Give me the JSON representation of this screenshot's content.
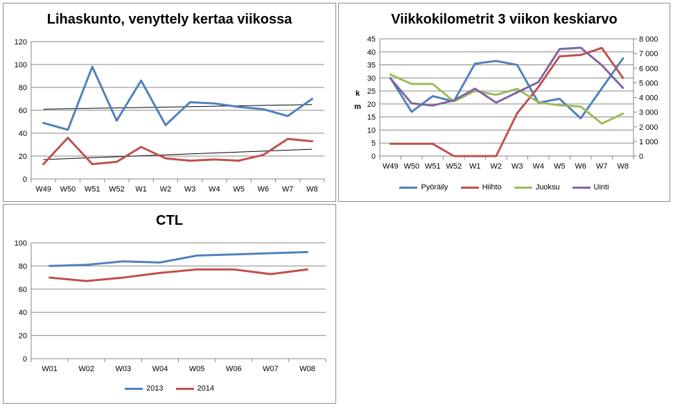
{
  "colors": {
    "blue": "#4f81bd",
    "red": "#c0504d",
    "green": "#9bbb59",
    "purple": "#8064a2",
    "trend": "#000000",
    "grid": "#868686"
  },
  "chart_data": [
    {
      "type": "line",
      "title": "Lihaskunto, venyttely kertaa viikossa",
      "categories": [
        "W49",
        "W50",
        "W51",
        "W52",
        "W1",
        "W2",
        "W3",
        "W4",
        "W5",
        "W6",
        "W7",
        "W8"
      ],
      "ylim": [
        0,
        120
      ],
      "yticks": [
        0,
        20,
        40,
        60,
        80,
        100,
        120
      ],
      "grid": true,
      "legend": "none",
      "series": [
        {
          "values": [
            49,
            43,
            98,
            51,
            86,
            47,
            67,
            66,
            63,
            61,
            55,
            70
          ],
          "color": "#4f81bd"
        },
        {
          "values": [
            13,
            36,
            13,
            15,
            28,
            18,
            16,
            17,
            16,
            21,
            35,
            33
          ],
          "color": "#c0504d"
        }
      ],
      "trendlines": [
        {
          "values": [
            61,
            65
          ],
          "color": "#000000"
        },
        {
          "values": [
            17,
            26
          ],
          "color": "#000000"
        }
      ]
    },
    {
      "type": "line",
      "title": "Viikkokilometrit 3 viikon keskiarvo",
      "categories": [
        "W49",
        "W50",
        "W51",
        "W52",
        "W1",
        "W2",
        "W3",
        "W4",
        "W5",
        "W6",
        "W7",
        "W8"
      ],
      "ylabel": "km",
      "ylim": [
        0,
        45
      ],
      "yticks": [
        0,
        5,
        10,
        15,
        20,
        25,
        30,
        35,
        40,
        45
      ],
      "y2lim": [
        0,
        8000
      ],
      "y2ticks": [
        "0",
        "1 000",
        "2 000",
        "3 000",
        "4 000",
        "5 000",
        "6 000",
        "7 000",
        "8 000"
      ],
      "grid": true,
      "legend": "bottom",
      "series": [
        {
          "name": "Pyöräily",
          "values": [
            30,
            17,
            23,
            21,
            35.5,
            36.5,
            35,
            20.5,
            22,
            14.5,
            26,
            37.5
          ],
          "axis": "left",
          "color": "#4f81bd"
        },
        {
          "name": "Hiihto",
          "values": [
            4.7,
            4.7,
            4.7,
            0,
            0,
            0,
            16.5,
            26.5,
            38.3,
            38.8,
            41.5,
            30
          ],
          "axis": "left",
          "color": "#c0504d"
        },
        {
          "name": "Juoksu",
          "values": [
            31.3,
            27.7,
            27.7,
            21,
            25,
            23.5,
            25.8,
            20.6,
            19.5,
            19,
            12.5,
            16.3
          ],
          "axis": "left",
          "color": "#9bbb59"
        },
        {
          "name": "Uinti",
          "values": [
            5300,
            3600,
            3450,
            3800,
            4600,
            3650,
            4350,
            5050,
            7300,
            7400,
            6200,
            4650
          ],
          "axis": "right",
          "color": "#8064a2"
        }
      ]
    },
    {
      "type": "line",
      "title": "CTL",
      "categories": [
        "W01",
        "W02",
        "W03",
        "W04",
        "W05",
        "W06",
        "W07",
        "W08"
      ],
      "ylim": [
        0,
        100
      ],
      "yticks": [
        0,
        20,
        40,
        60,
        80,
        100
      ],
      "grid": true,
      "legend": "bottom",
      "series": [
        {
          "name": "2013",
          "values": [
            80,
            81,
            84,
            83,
            89,
            90,
            91,
            92
          ],
          "color": "#4f81bd"
        },
        {
          "name": "2014",
          "values": [
            70,
            67,
            70,
            74,
            77,
            77,
            73,
            77
          ],
          "color": "#c0504d"
        }
      ]
    }
  ]
}
